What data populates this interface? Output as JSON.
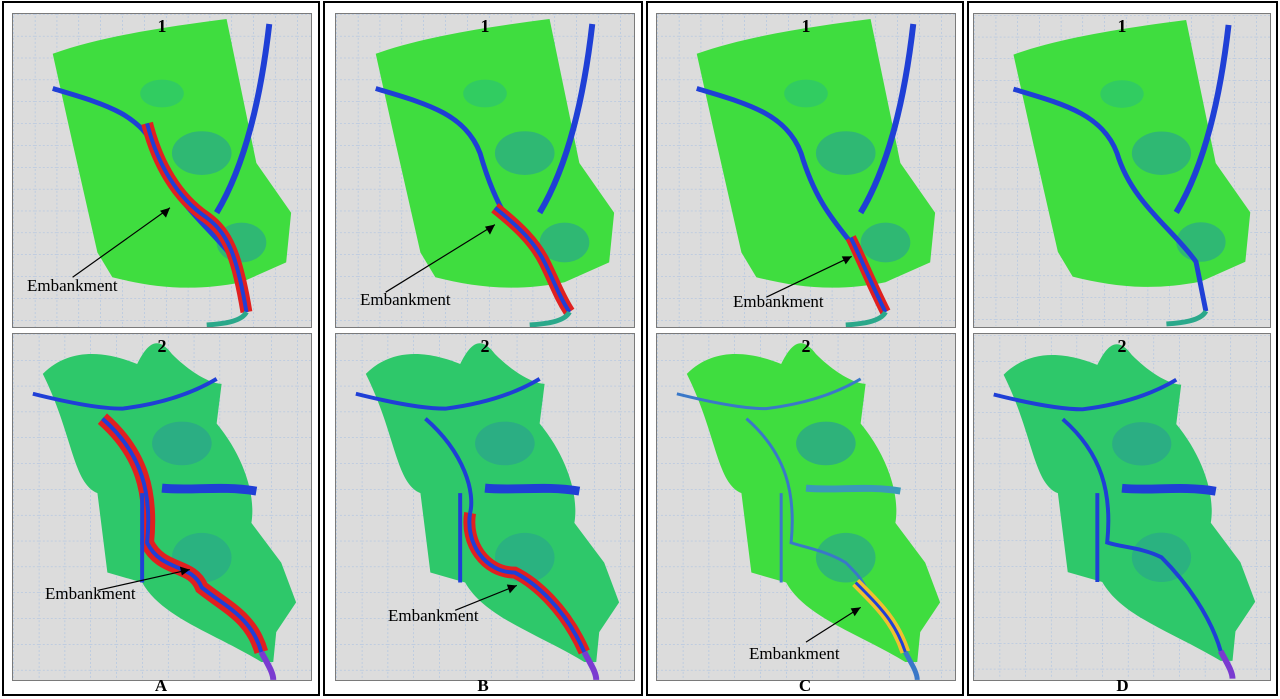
{
  "columns": [
    {
      "id": "A",
      "label": "A",
      "top_number": "1",
      "bottom_number": "2",
      "top_callout": "Embankment",
      "bottom_callout": "Embankment"
    },
    {
      "id": "B",
      "label": "B",
      "top_number": "1",
      "bottom_number": "2",
      "top_callout": "Embankment",
      "bottom_callout": "Embankment"
    },
    {
      "id": "C",
      "label": "C",
      "top_number": "1",
      "bottom_number": "2",
      "top_callout": "Embankment",
      "bottom_callout": "Embankment"
    },
    {
      "id": "D",
      "label": "D",
      "top_number": "1",
      "bottom_number": "2",
      "top_callout": "",
      "bottom_callout": ""
    }
  ],
  "colors": {
    "terrain_light": "#3fdd3f",
    "terrain_mid": "#2ec86a",
    "terrain_teal": "#2aa88a",
    "channel": "#1f3fd6",
    "embankment": "#e02020",
    "embankment_light": "#f0c030",
    "outlet": "#7a3ad0",
    "grid": "#8fb4e6",
    "background": "#dcdcdc"
  }
}
